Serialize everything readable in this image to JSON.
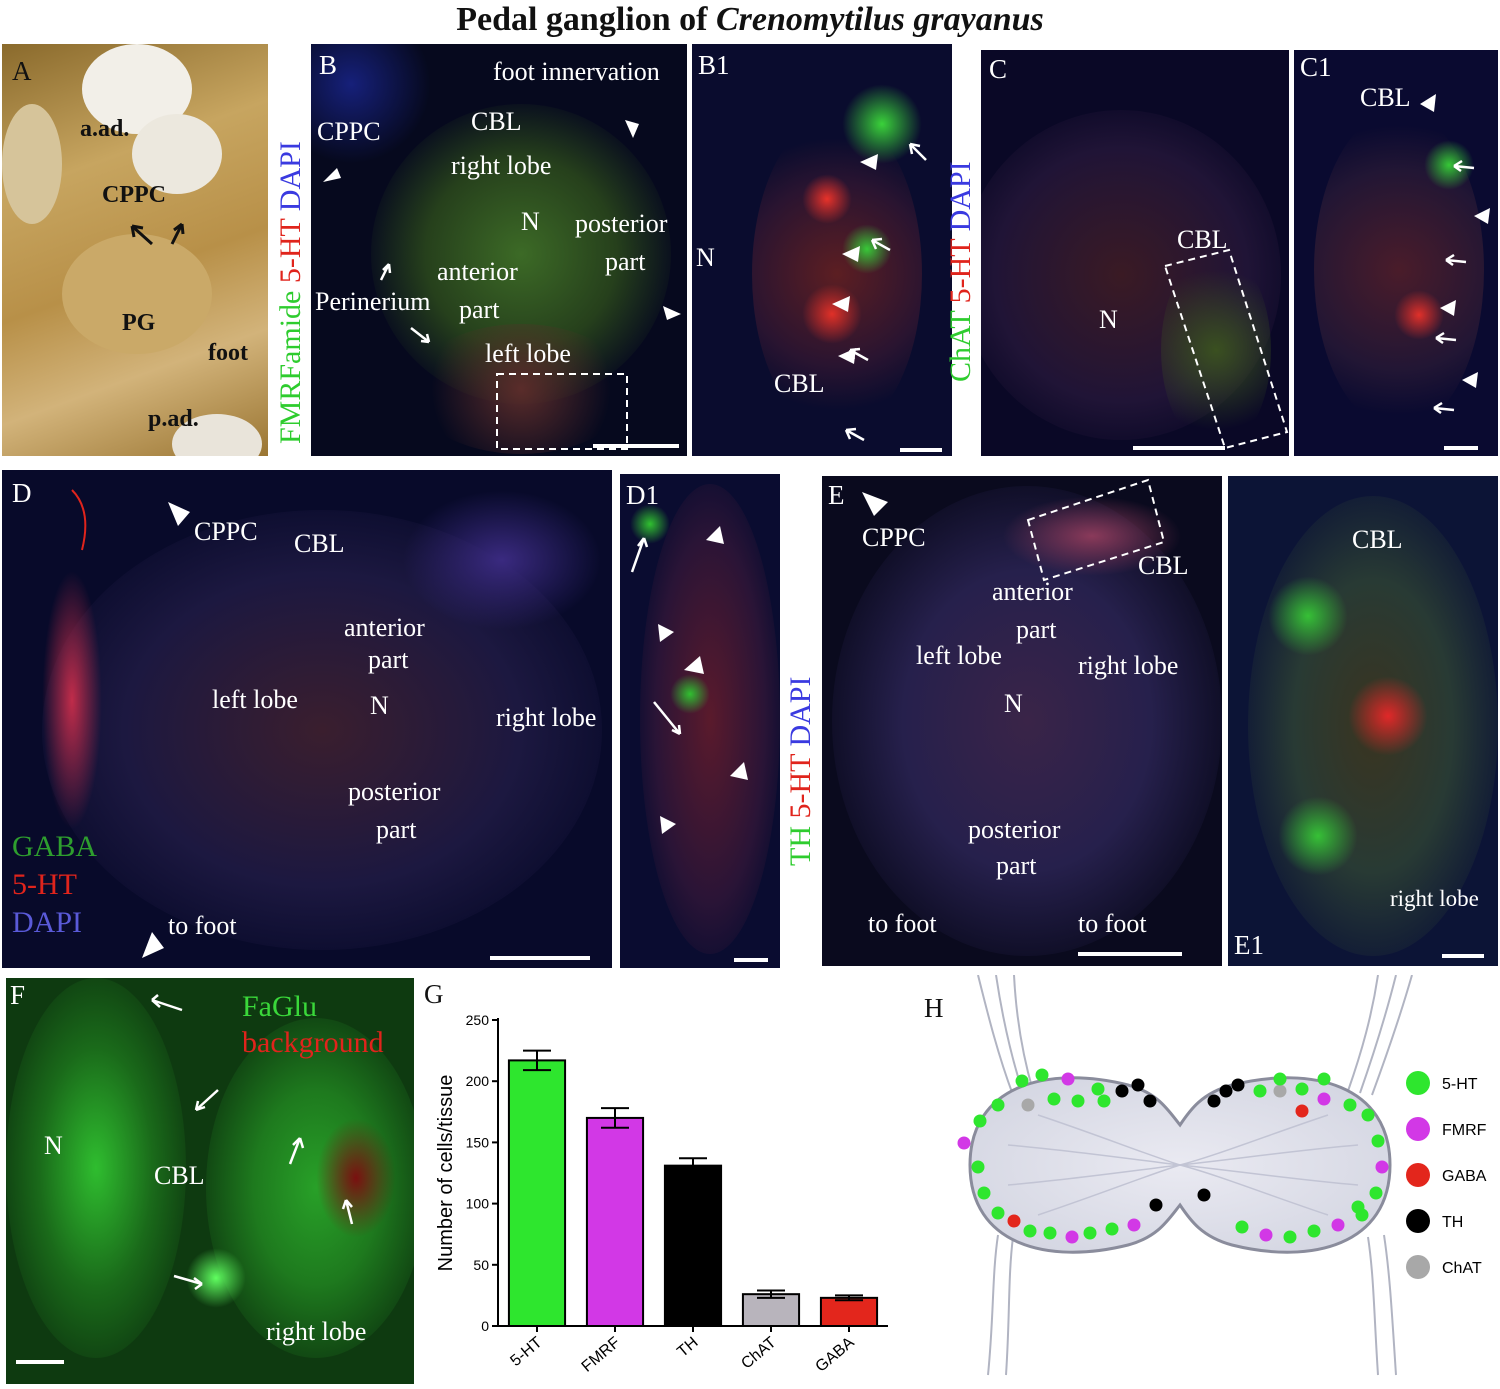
{
  "figure": {
    "title_prefix": "Pedal ganglion of ",
    "title_species": "Crenomytilus grayanus"
  },
  "panels": {
    "A": {
      "letter": "A",
      "labels": [
        "a.ad.",
        "CPPC",
        "PG",
        "foot",
        "p.ad."
      ]
    },
    "B": {
      "letter": "B",
      "stain_green": "FMRFamide",
      "stain_red": "5-HT",
      "stain_blue": "DAPI",
      "labels": [
        "foot innervation",
        "CPPC",
        "CBL",
        "right lobe",
        "N",
        "posterior",
        "part",
        "anterior",
        "part",
        "Perinerium",
        "left lobe"
      ]
    },
    "B1": {
      "letter": "B1",
      "labels": [
        "N",
        "CBL"
      ]
    },
    "C": {
      "letter": "C",
      "stain_green": "ChAT",
      "stain_red": "5-HT",
      "stain_blue": "DAPI",
      "labels": [
        "CBL",
        "N"
      ]
    },
    "C1": {
      "letter": "C1",
      "labels": [
        "CBL"
      ]
    },
    "D": {
      "letter": "D",
      "stain_green": "GABA",
      "stain_red": "5-HT",
      "stain_blue": "DAPI",
      "labels": [
        "CPPC",
        "CBL",
        "anterior",
        "part",
        "left lobe",
        "N",
        "right lobe",
        "posterior",
        "part",
        "to foot"
      ]
    },
    "D1": {
      "letter": "D1"
    },
    "E": {
      "letter": "E",
      "stain_green": "TH",
      "stain_red": "5-HT",
      "stain_blue": "DAPI",
      "labels": [
        "CPPC",
        "CBL",
        "anterior",
        "part",
        "left lobe",
        "right lobe",
        "N",
        "posterior",
        "part",
        "to foot",
        "to foot"
      ]
    },
    "E1": {
      "letter": "E1",
      "labels": [
        "CBL",
        "right lobe"
      ]
    },
    "F": {
      "letter": "F",
      "stain_green": "FaGlu",
      "stain_red": "background",
      "labels": [
        "N",
        "CBL",
        "right lobe"
      ]
    },
    "G": {
      "letter": "G"
    },
    "H": {
      "letter": "H"
    }
  },
  "chart_data": {
    "type": "bar",
    "ylabel": "Number of cells/tissue",
    "ylim": [
      0,
      250
    ],
    "yticks": [
      0,
      50,
      100,
      150,
      200,
      250
    ],
    "categories": [
      "5-HT",
      "FMRF",
      "TH",
      "ChAT",
      "GABA"
    ],
    "values": [
      217,
      170,
      131,
      26,
      23
    ],
    "errors": [
      8,
      8,
      6,
      3,
      2
    ],
    "colors": [
      "#2ee62e",
      "#d238e6",
      "#000000",
      "#b8b4bc",
      "#e3261c"
    ]
  },
  "legend_h": [
    {
      "label": "5-HT",
      "color": "#2ee62e"
    },
    {
      "label": "FMRF",
      "color": "#d238e6"
    },
    {
      "label": "GABA",
      "color": "#e3261c"
    },
    {
      "label": "TH",
      "color": "#000000"
    },
    {
      "label": "ChAT",
      "color": "#a8a8a8"
    }
  ]
}
